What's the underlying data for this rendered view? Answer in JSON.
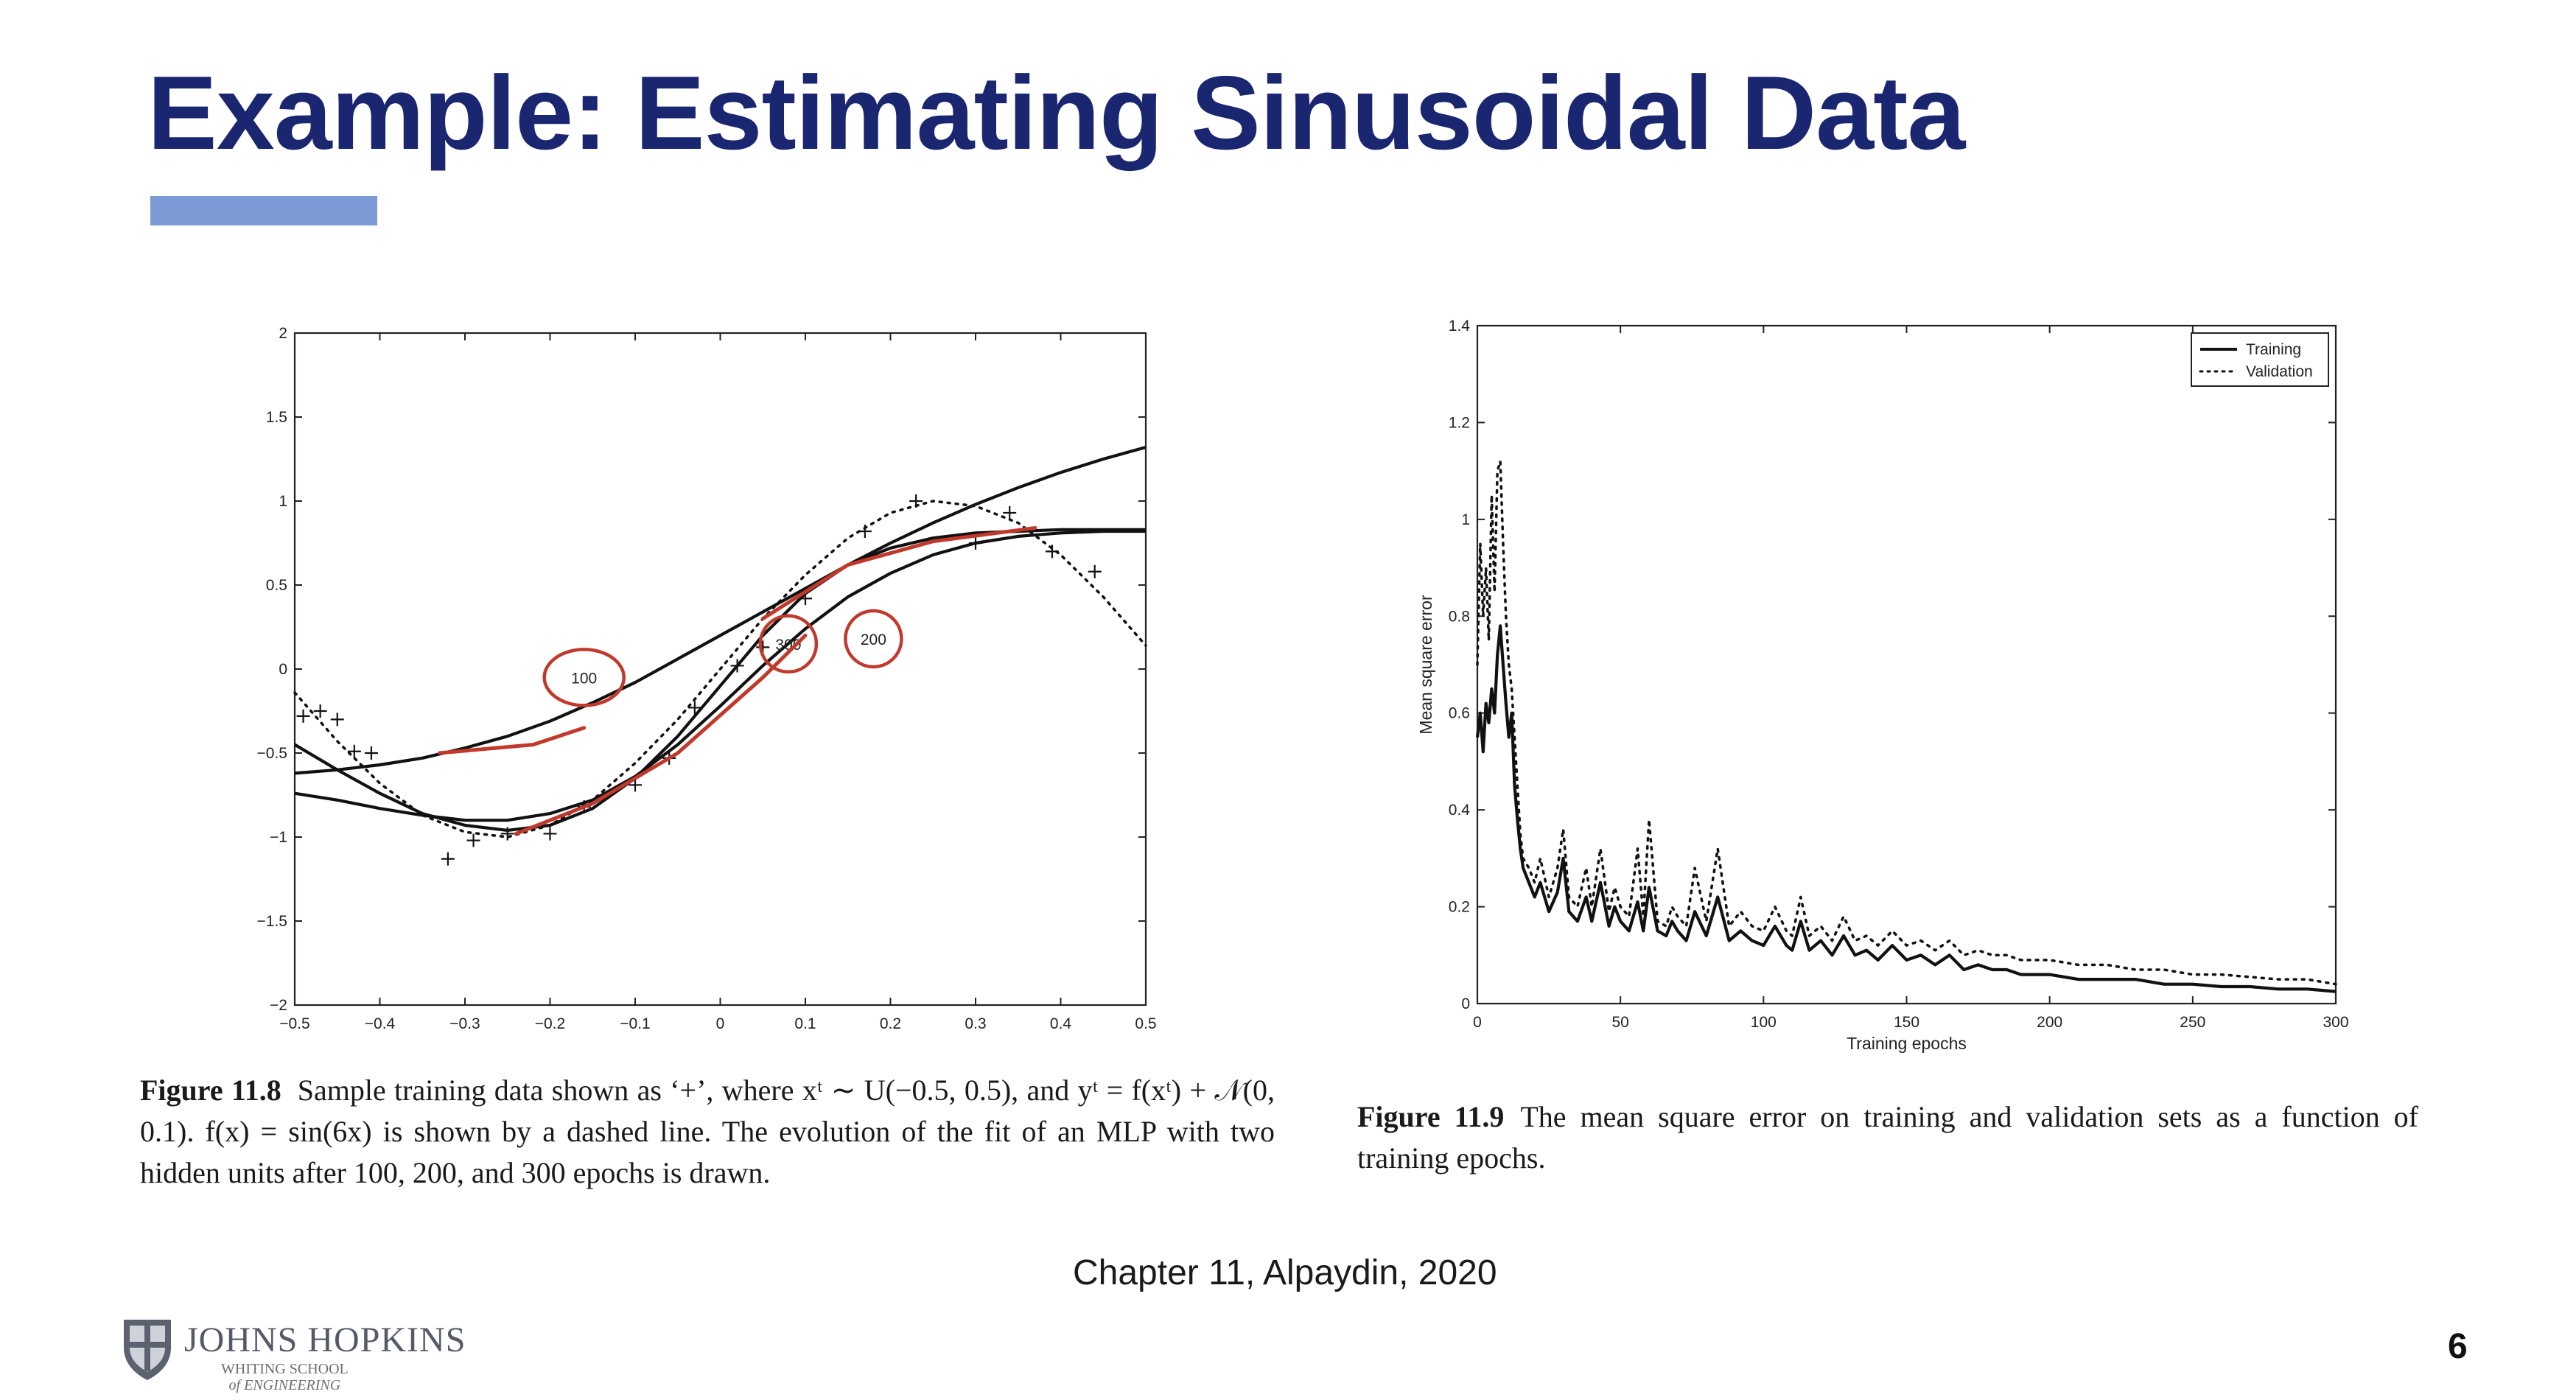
{
  "slide": {
    "title": "Example:  Estimating Sinusoidal Data",
    "source": "Chapter 11, Alpaydin, 2020",
    "page_number": "6",
    "logo": {
      "name": "JOHNS HOPKINS",
      "sub1": "WHITING SCHOOL",
      "sub2": "of ENGINEERING",
      "icon": "shield-icon"
    },
    "accent_color": "#1a2670",
    "bar_color": "#7b9ad6",
    "ink_color": "#c0392b"
  },
  "figure_left": {
    "caption_label": "Figure 11.8",
    "caption_text": "Sample training data shown as ‘+’, where xᵗ ∼ U(−0.5, 0.5), and yᵗ = f(xᵗ) + 𝒩(0, 0.1). f(x) = sin(6x) is shown by a dashed line. The evolution of the fit of an MLP with two hidden units after 100, 200, and 300 epochs is drawn.",
    "annotations": [
      "100",
      "200",
      "300"
    ]
  },
  "figure_right": {
    "caption_label": "Figure 11.9",
    "caption_text": "The mean square error on training and validation sets as a function of training epochs."
  },
  "chart_data": [
    {
      "type": "line",
      "xlim": [
        -0.5,
        0.5
      ],
      "ylim": [
        -2,
        2
      ],
      "x_ticks": [
        "−0.5",
        "−0.4",
        "−0.3",
        "−0.2",
        "−0.1",
        "0",
        "0.1",
        "0.2",
        "0.3",
        "0.4",
        "0.5"
      ],
      "y_ticks": [
        "−2",
        "−1.5",
        "−1",
        "−0.5",
        "0",
        "0.5",
        "1",
        "1.5",
        "2"
      ],
      "grid": false,
      "legend": false,
      "series": [
        {
          "style": "dotted",
          "x": [
            -0.5,
            -0.45,
            -0.4,
            -0.35,
            -0.3,
            -0.25,
            -0.2,
            -0.15,
            -0.1,
            -0.05,
            0,
            0.05,
            0.1,
            0.15,
            0.2,
            0.25,
            0.3,
            0.35,
            0.4,
            0.45,
            0.5
          ],
          "y": [
            -0.14,
            -0.43,
            -0.68,
            -0.87,
            -0.97,
            -1.0,
            -0.93,
            -0.78,
            -0.56,
            -0.3,
            0,
            0.3,
            0.56,
            0.78,
            0.93,
            1.0,
            0.97,
            0.87,
            0.68,
            0.43,
            0.14
          ]
        },
        {
          "style": "solid",
          "x": [
            -0.5,
            -0.45,
            -0.4,
            -0.35,
            -0.3,
            -0.25,
            -0.2,
            -0.15,
            -0.1,
            -0.05,
            0,
            0.05,
            0.1,
            0.15,
            0.2,
            0.25,
            0.3,
            0.35,
            0.4,
            0.45,
            0.5
          ],
          "y": [
            -0.62,
            -0.6,
            -0.57,
            -0.53,
            -0.47,
            -0.4,
            -0.31,
            -0.2,
            -0.08,
            0.06,
            0.2,
            0.34,
            0.48,
            0.62,
            0.75,
            0.87,
            0.98,
            1.08,
            1.17,
            1.25,
            1.32
          ]
        },
        {
          "style": "solid",
          "x": [
            -0.5,
            -0.45,
            -0.4,
            -0.35,
            -0.3,
            -0.25,
            -0.2,
            -0.15,
            -0.1,
            -0.05,
            0,
            0.05,
            0.1,
            0.15,
            0.2,
            0.25,
            0.3,
            0.35,
            0.4,
            0.45,
            0.5
          ],
          "y": [
            -0.74,
            -0.78,
            -0.83,
            -0.87,
            -0.9,
            -0.9,
            -0.86,
            -0.78,
            -0.64,
            -0.45,
            -0.22,
            0.02,
            0.24,
            0.43,
            0.57,
            0.68,
            0.75,
            0.79,
            0.81,
            0.82,
            0.82
          ]
        },
        {
          "style": "solid",
          "x": [
            -0.5,
            -0.45,
            -0.4,
            -0.35,
            -0.3,
            -0.25,
            -0.2,
            -0.15,
            -0.1,
            -0.05,
            0,
            0.05,
            0.1,
            0.15,
            0.2,
            0.25,
            0.3,
            0.35,
            0.4,
            0.45,
            0.5
          ],
          "y": [
            -0.45,
            -0.6,
            -0.74,
            -0.86,
            -0.93,
            -0.96,
            -0.93,
            -0.83,
            -0.65,
            -0.4,
            -0.1,
            0.2,
            0.45,
            0.62,
            0.72,
            0.78,
            0.81,
            0.82,
            0.83,
            0.83,
            0.83
          ]
        },
        {
          "style": "marker-plus",
          "x": [
            -0.49,
            -0.47,
            -0.45,
            -0.43,
            -0.41,
            -0.32,
            -0.29,
            -0.25,
            -0.2,
            -0.16,
            -0.1,
            -0.06,
            -0.03,
            0.02,
            0.05,
            0.1,
            0.17,
            0.23,
            0.3,
            0.34,
            0.39,
            0.44
          ],
          "y": [
            -0.28,
            -0.25,
            -0.3,
            -0.49,
            -0.5,
            -1.13,
            -1.02,
            -0.98,
            -0.98,
            -0.82,
            -0.69,
            -0.53,
            -0.23,
            0.02,
            0.13,
            0.42,
            0.82,
            1.0,
            0.75,
            0.93,
            0.7,
            0.58
          ]
        }
      ]
    },
    {
      "type": "line",
      "xlabel": "Training epochs",
      "ylabel": "Mean square error",
      "xlim": [
        0,
        300
      ],
      "ylim": [
        0,
        1.4
      ],
      "x_ticks": [
        "0",
        "50",
        "100",
        "150",
        "200",
        "250",
        "300"
      ],
      "y_ticks": [
        "0",
        "0.2",
        "0.4",
        "0.6",
        "0.8",
        "1",
        "1.2",
        "1.4"
      ],
      "grid": false,
      "legend": "top-right",
      "series": [
        {
          "name": "Training",
          "style": "solid",
          "x": [
            0,
            1,
            2,
            3,
            4,
            5,
            6,
            7,
            8,
            9,
            10,
            11,
            12,
            13,
            14,
            15,
            16,
            18,
            20,
            22,
            25,
            28,
            30,
            32,
            35,
            38,
            40,
            43,
            46,
            48,
            50,
            53,
            56,
            58,
            60,
            63,
            66,
            68,
            70,
            73,
            76,
            80,
            84,
            88,
            92,
            96,
            100,
            104,
            108,
            110,
            113,
            116,
            120,
            124,
            128,
            132,
            136,
            140,
            145,
            150,
            155,
            160,
            165,
            170,
            175,
            180,
            185,
            190,
            195,
            200,
            210,
            220,
            230,
            240,
            250,
            260,
            270,
            280,
            290,
            300
          ],
          "y": [
            0.55,
            0.6,
            0.52,
            0.62,
            0.58,
            0.65,
            0.6,
            0.72,
            0.78,
            0.7,
            0.62,
            0.55,
            0.6,
            0.45,
            0.38,
            0.32,
            0.28,
            0.25,
            0.22,
            0.25,
            0.19,
            0.23,
            0.3,
            0.19,
            0.17,
            0.22,
            0.17,
            0.25,
            0.16,
            0.2,
            0.17,
            0.15,
            0.21,
            0.15,
            0.24,
            0.15,
            0.14,
            0.17,
            0.15,
            0.13,
            0.19,
            0.14,
            0.22,
            0.13,
            0.15,
            0.13,
            0.12,
            0.16,
            0.12,
            0.11,
            0.17,
            0.11,
            0.13,
            0.1,
            0.14,
            0.1,
            0.11,
            0.09,
            0.12,
            0.09,
            0.1,
            0.08,
            0.1,
            0.07,
            0.08,
            0.07,
            0.07,
            0.06,
            0.06,
            0.06,
            0.05,
            0.05,
            0.05,
            0.04,
            0.04,
            0.035,
            0.035,
            0.03,
            0.03,
            0.025
          ]
        },
        {
          "name": "Validation",
          "style": "dotted",
          "x": [
            0,
            1,
            2,
            3,
            4,
            5,
            6,
            7,
            8,
            9,
            10,
            11,
            12,
            13,
            14,
            15,
            16,
            18,
            20,
            22,
            25,
            28,
            30,
            32,
            35,
            38,
            40,
            43,
            46,
            48,
            50,
            53,
            56,
            58,
            60,
            63,
            66,
            68,
            70,
            73,
            76,
            80,
            84,
            88,
            92,
            96,
            100,
            104,
            108,
            110,
            113,
            116,
            120,
            124,
            128,
            132,
            136,
            140,
            145,
            150,
            155,
            160,
            165,
            170,
            175,
            180,
            185,
            190,
            195,
            200,
            210,
            220,
            230,
            240,
            250,
            260,
            270,
            280,
            290,
            300
          ],
          "y": [
            0.7,
            0.95,
            0.8,
            0.9,
            0.75,
            1.05,
            0.85,
            1.1,
            1.12,
            0.95,
            0.8,
            0.7,
            0.65,
            0.55,
            0.45,
            0.35,
            0.3,
            0.28,
            0.25,
            0.3,
            0.22,
            0.28,
            0.36,
            0.22,
            0.2,
            0.28,
            0.2,
            0.32,
            0.19,
            0.24,
            0.2,
            0.18,
            0.32,
            0.18,
            0.38,
            0.17,
            0.16,
            0.2,
            0.18,
            0.16,
            0.28,
            0.17,
            0.32,
            0.16,
            0.19,
            0.16,
            0.15,
            0.2,
            0.15,
            0.14,
            0.22,
            0.14,
            0.16,
            0.13,
            0.18,
            0.13,
            0.14,
            0.12,
            0.15,
            0.12,
            0.13,
            0.11,
            0.13,
            0.1,
            0.11,
            0.1,
            0.1,
            0.09,
            0.09,
            0.09,
            0.08,
            0.08,
            0.07,
            0.07,
            0.06,
            0.06,
            0.055,
            0.05,
            0.05,
            0.04
          ]
        }
      ]
    }
  ]
}
